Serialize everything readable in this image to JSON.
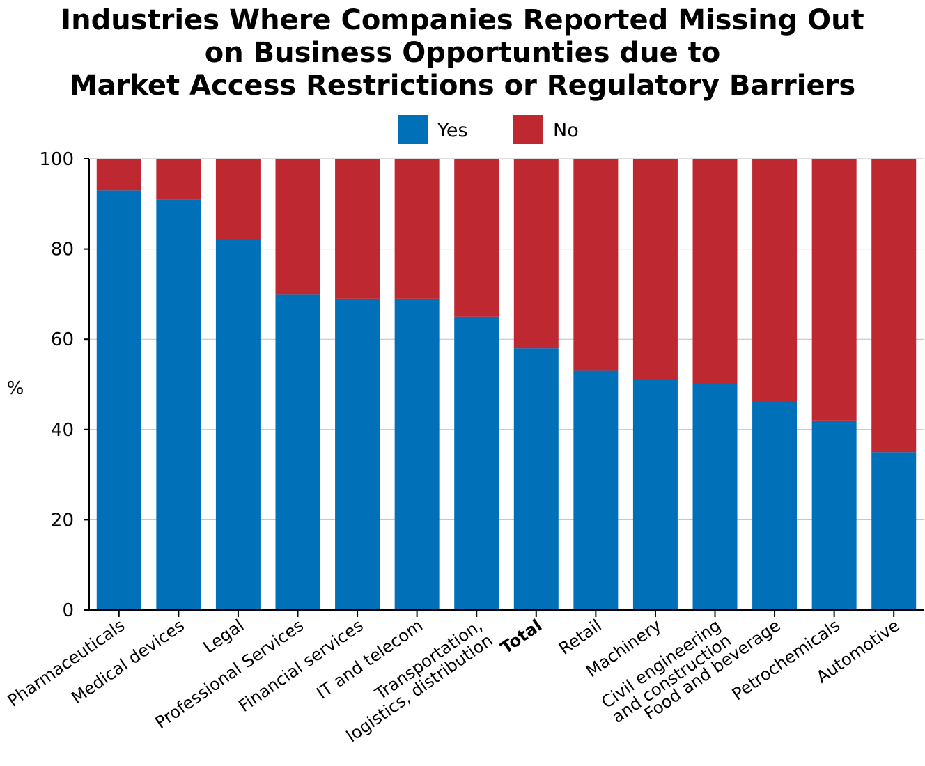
{
  "chart_data": {
    "type": "bar",
    "stacked": true,
    "title_lines": [
      "Industries Where Companies Reported Missing Out",
      "on Business Opportunties due to",
      "Market Access Restrictions or Regulatory Barriers"
    ],
    "ylabel": "%",
    "ylim": [
      0,
      100
    ],
    "yticks": [
      "0",
      "20",
      "40",
      "60",
      "80",
      "100"
    ],
    "grid": true,
    "legend_position": "top-center",
    "categories": [
      [
        "Pharmaceuticals"
      ],
      [
        "Medical devices"
      ],
      [
        "Legal"
      ],
      [
        "Professional Services"
      ],
      [
        "Financial services"
      ],
      [
        "IT and telecom"
      ],
      [
        "Transportation,",
        "logistics, distribution"
      ],
      [
        "Total"
      ],
      [
        "Retail"
      ],
      [
        "Machinery"
      ],
      [
        "Civil engineering",
        "and construction"
      ],
      [
        "Food and beverage"
      ],
      [
        "Petrochemicals"
      ],
      [
        "Automotive"
      ]
    ],
    "bold_categories": [
      "Total"
    ],
    "series": [
      {
        "name": "Yes",
        "color": "#0070B8",
        "values": [
          93,
          91,
          82,
          70,
          69,
          69,
          65,
          58,
          53,
          51,
          50,
          46,
          42,
          35
        ]
      },
      {
        "name": "No",
        "color": "#BE2830",
        "values": [
          7,
          9,
          18,
          30,
          31,
          31,
          35,
          42,
          47,
          49,
          50,
          54,
          58,
          65
        ]
      }
    ]
  }
}
